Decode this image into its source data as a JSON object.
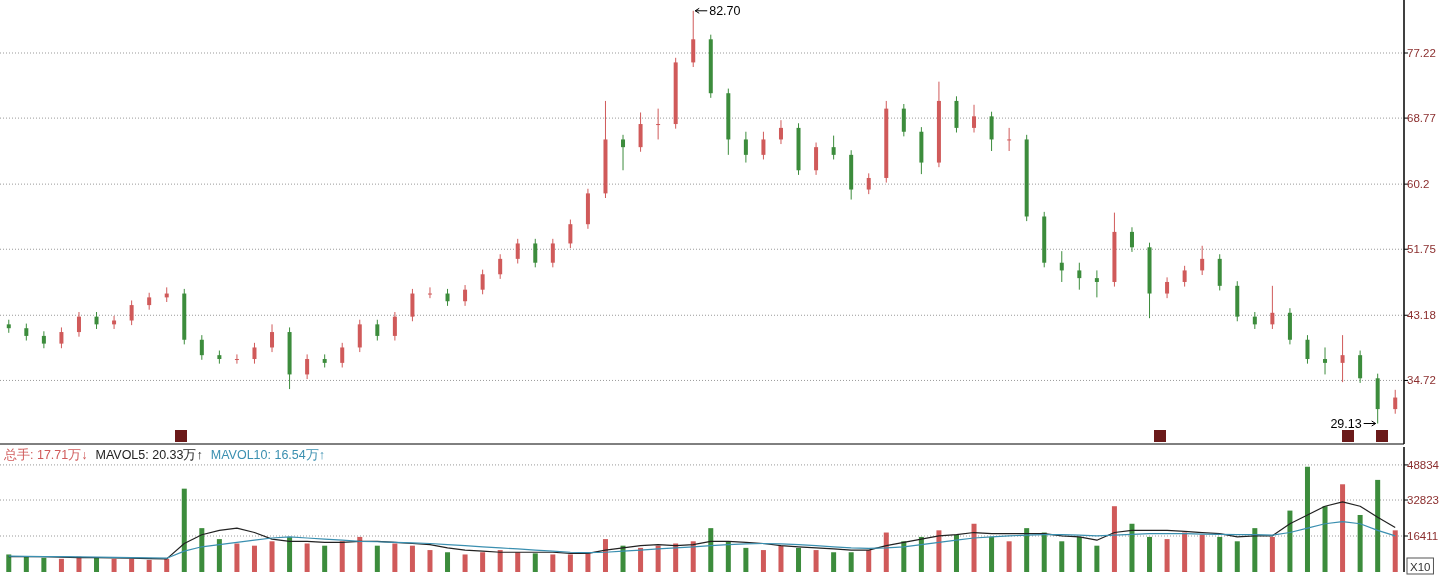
{
  "chart_data": [
    {
      "type": "candlestick",
      "categories": [
        null,
        null,
        null,
        null,
        null,
        null,
        null,
        null,
        null,
        null,
        null,
        null,
        null,
        null,
        null,
        null,
        null,
        null,
        null,
        null,
        null,
        null,
        null,
        null,
        null,
        null,
        null,
        null,
        null,
        null,
        null,
        null,
        null,
        null,
        null,
        null,
        null,
        null,
        null,
        null,
        null,
        null,
        null,
        null,
        null,
        null,
        null,
        null,
        null,
        null,
        null,
        null,
        null,
        null,
        null,
        null,
        null,
        null,
        null,
        null,
        null,
        null,
        null,
        null,
        null,
        null,
        null,
        null,
        null,
        null,
        null,
        null,
        null,
        null,
        null,
        null,
        null,
        null,
        null,
        null
      ],
      "ohlc": [
        [
          42,
          42.6,
          40.9,
          41.5
        ],
        [
          41.5,
          42.1,
          39.9,
          40.5
        ],
        [
          40.5,
          41.1,
          38.9,
          39.5
        ],
        [
          39.5,
          41.6,
          38.9,
          41
        ],
        [
          41,
          43.6,
          40.4,
          43
        ],
        [
          43,
          43.6,
          41.4,
          42
        ],
        [
          42,
          43.1,
          41.4,
          42.5
        ],
        [
          42.5,
          45.1,
          41.9,
          44.5
        ],
        [
          44.5,
          46.1,
          43.9,
          45.5
        ],
        [
          45.5,
          46.8,
          44.9,
          46
        ],
        [
          46,
          46.6,
          39.4,
          40
        ],
        [
          40,
          40.6,
          37.4,
          38
        ],
        [
          38,
          38.6,
          36.9,
          37.5
        ],
        [
          37.5,
          38.1,
          36.9,
          37.5
        ],
        [
          37.5,
          39.6,
          36.9,
          39
        ],
        [
          39,
          42,
          38.4,
          41
        ],
        [
          41,
          41.6,
          33.6,
          35.5
        ],
        [
          35.5,
          38.1,
          34.9,
          37.5
        ],
        [
          37.5,
          38.1,
          36.4,
          37
        ],
        [
          37,
          39.6,
          36.4,
          39
        ],
        [
          39,
          42.6,
          38.4,
          42
        ],
        [
          42,
          42.6,
          39.9,
          40.5
        ],
        [
          40.5,
          43.6,
          39.9,
          43
        ],
        [
          43,
          46.6,
          42.4,
          46
        ],
        [
          46,
          46.8,
          45.4,
          46
        ],
        [
          46,
          46.6,
          44.4,
          45
        ],
        [
          45,
          47.1,
          44.4,
          46.5
        ],
        [
          46.5,
          49.1,
          45.9,
          48.5
        ],
        [
          48.5,
          51.1,
          47.9,
          50.5
        ],
        [
          50.5,
          53.1,
          49.9,
          52.5
        ],
        [
          52.5,
          53.1,
          49.4,
          50
        ],
        [
          50,
          53.1,
          49.4,
          52.5
        ],
        [
          52.5,
          55.6,
          51.9,
          55
        ],
        [
          55,
          59.6,
          54.4,
          59
        ],
        [
          59,
          71,
          58.4,
          66
        ],
        [
          66,
          66.6,
          62,
          65
        ],
        [
          65,
          69.5,
          64.4,
          68
        ],
        [
          68,
          70,
          66,
          68
        ],
        [
          68,
          76.6,
          67.4,
          76
        ],
        [
          76,
          82.7,
          75.4,
          79
        ],
        [
          79,
          79.6,
          71.4,
          72
        ],
        [
          72,
          72.6,
          64,
          66
        ],
        [
          66,
          67,
          63,
          64
        ],
        [
          64,
          67,
          63.4,
          66
        ],
        [
          66,
          68.5,
          65.4,
          67.5
        ],
        [
          67.5,
          68.1,
          61.4,
          62
        ],
        [
          62,
          65.6,
          61.4,
          65
        ],
        [
          65,
          66.5,
          63.4,
          64
        ],
        [
          64,
          64.6,
          58.2,
          59.5
        ],
        [
          59.5,
          61.6,
          58.9,
          61
        ],
        [
          61,
          71,
          60.4,
          70
        ],
        [
          70,
          70.6,
          66.4,
          67
        ],
        [
          67,
          67.6,
          61.5,
          63
        ],
        [
          63,
          73.5,
          62.4,
          71
        ],
        [
          71,
          71.6,
          66.9,
          67.5
        ],
        [
          67.5,
          70.5,
          66.9,
          69
        ],
        [
          69,
          69.6,
          64.5,
          66
        ],
        [
          66,
          67.5,
          64.5,
          66
        ],
        [
          66,
          66.6,
          55.4,
          56
        ],
        [
          56,
          56.6,
          49.4,
          50
        ],
        [
          50,
          51.5,
          47.5,
          49
        ],
        [
          49,
          50,
          46.5,
          48
        ],
        [
          48,
          49,
          45.5,
          47.5
        ],
        [
          47.5,
          56.5,
          46.9,
          54
        ],
        [
          54,
          54.6,
          51.4,
          52
        ],
        [
          52,
          52.6,
          42.8,
          46
        ],
        [
          46,
          48.1,
          45.4,
          47.5
        ],
        [
          47.5,
          49.6,
          46.9,
          49
        ],
        [
          49,
          52.2,
          48.4,
          50.5
        ],
        [
          50.5,
          51.1,
          46.4,
          47
        ],
        [
          47,
          47.6,
          42.4,
          43
        ],
        [
          43,
          43.6,
          41.4,
          42
        ],
        [
          42,
          47,
          41.4,
          43.5
        ],
        [
          43.5,
          44.1,
          39.4,
          40
        ],
        [
          40,
          40.6,
          36.9,
          37.5
        ],
        [
          37.5,
          39,
          35.5,
          37
        ],
        [
          37,
          40.6,
          34.5,
          38
        ],
        [
          38,
          38.6,
          34.4,
          35
        ],
        [
          35,
          35.6,
          29.13,
          31
        ],
        [
          31,
          33.5,
          30.4,
          32.5
        ]
      ],
      "colors": [
        "#3c8c3c",
        "#3c8c3c",
        "#3c8c3c",
        "#d05a5a",
        "#d05a5a",
        "#3c8c3c",
        "#d05a5a",
        "#d05a5a",
        "#d05a5a",
        "#d05a5a",
        "#3c8c3c",
        "#3c8c3c",
        "#3c8c3c",
        "#d05a5a",
        "#d05a5a",
        "#d05a5a",
        "#3c8c3c",
        "#d05a5a",
        "#3c8c3c",
        "#d05a5a",
        "#d05a5a",
        "#3c8c3c",
        "#d05a5a",
        "#d05a5a",
        "#d05a5a",
        "#3c8c3c",
        "#d05a5a",
        "#d05a5a",
        "#d05a5a",
        "#d05a5a",
        "#3c8c3c",
        "#d05a5a",
        "#d05a5a",
        "#d05a5a",
        "#d05a5a",
        "#3c8c3c",
        "#d05a5a",
        "#d05a5a",
        "#d05a5a",
        "#d05a5a",
        "#3c8c3c",
        "#3c8c3c",
        "#3c8c3c",
        "#d05a5a",
        "#d05a5a",
        "#3c8c3c",
        "#d05a5a",
        "#3c8c3c",
        "#3c8c3c",
        "#d05a5a",
        "#d05a5a",
        "#3c8c3c",
        "#3c8c3c",
        "#d05a5a",
        "#3c8c3c",
        "#d05a5a",
        "#3c8c3c",
        "#d05a5a",
        "#3c8c3c",
        "#3c8c3c",
        "#3c8c3c",
        "#3c8c3c",
        "#3c8c3c",
        "#d05a5a",
        "#3c8c3c",
        "#3c8c3c",
        "#d05a5a",
        "#d05a5a",
        "#d05a5a",
        "#3c8c3c",
        "#3c8c3c",
        "#3c8c3c",
        "#d05a5a",
        "#3c8c3c",
        "#3c8c3c",
        "#3c8c3c",
        "#d05a5a",
        "#3c8c3c",
        "#3c8c3c",
        "#d05a5a"
      ],
      "ylim": [
        26.47,
        84.1
      ],
      "yticks": [
        34.72,
        43.18,
        51.75,
        60.2,
        68.77,
        77.22
      ],
      "grid": "y",
      "annotations": [
        "82.70",
        "29.13"
      ]
    },
    {
      "type": "bar",
      "categories": [
        null,
        null,
        null,
        null,
        null,
        null,
        null,
        null,
        null,
        null,
        null,
        null,
        null,
        null,
        null,
        null,
        null,
        null,
        null,
        null,
        null,
        null,
        null,
        null,
        null,
        null,
        null,
        null,
        null,
        null,
        null,
        null,
        null,
        null,
        null,
        null,
        null,
        null,
        null,
        null,
        null,
        null,
        null,
        null,
        null,
        null,
        null,
        null,
        null,
        null,
        null,
        null,
        null,
        null,
        null,
        null,
        null,
        null,
        null,
        null,
        null,
        null,
        null,
        null,
        null,
        null,
        null,
        null,
        null,
        null,
        null,
        null,
        null,
        null,
        null,
        null,
        null,
        null,
        null,
        null
      ],
      "series": [
        {
          "type": "bar",
          "name": "总手: 17.71万↓",
          "color": "#d05a5a",
          "colors": [
            "#3c8c3c",
            "#3c8c3c",
            "#3c8c3c",
            "#d05a5a",
            "#d05a5a",
            "#3c8c3c",
            "#d05a5a",
            "#d05a5a",
            "#d05a5a",
            "#d05a5a",
            "#3c8c3c",
            "#3c8c3c",
            "#3c8c3c",
            "#d05a5a",
            "#d05a5a",
            "#d05a5a",
            "#3c8c3c",
            "#d05a5a",
            "#3c8c3c",
            "#d05a5a",
            "#d05a5a",
            "#3c8c3c",
            "#d05a5a",
            "#d05a5a",
            "#d05a5a",
            "#3c8c3c",
            "#d05a5a",
            "#d05a5a",
            "#d05a5a",
            "#d05a5a",
            "#3c8c3c",
            "#d05a5a",
            "#d05a5a",
            "#d05a5a",
            "#d05a5a",
            "#3c8c3c",
            "#d05a5a",
            "#d05a5a",
            "#d05a5a",
            "#d05a5a",
            "#3c8c3c",
            "#3c8c3c",
            "#3c8c3c",
            "#d05a5a",
            "#d05a5a",
            "#3c8c3c",
            "#d05a5a",
            "#3c8c3c",
            "#3c8c3c",
            "#d05a5a",
            "#d05a5a",
            "#3c8c3c",
            "#3c8c3c",
            "#d05a5a",
            "#3c8c3c",
            "#d05a5a",
            "#3c8c3c",
            "#d05a5a",
            "#3c8c3c",
            "#3c8c3c",
            "#3c8c3c",
            "#3c8c3c",
            "#3c8c3c",
            "#d05a5a",
            "#3c8c3c",
            "#3c8c3c",
            "#d05a5a",
            "#d05a5a",
            "#d05a5a",
            "#3c8c3c",
            "#3c8c3c",
            "#3c8c3c",
            "#d05a5a",
            "#3c8c3c",
            "#3c8c3c",
            "#3c8c3c",
            "#d05a5a",
            "#3c8c3c",
            "#3c8c3c",
            "#d05a5a"
          ],
          "values": [
            8000,
            7000,
            6500,
            6000,
            7000,
            6500,
            6000,
            6000,
            5500,
            6000,
            38000,
            20000,
            15000,
            13000,
            12000,
            14000,
            16000,
            13000,
            12000,
            14000,
            16000,
            12000,
            13000,
            12000,
            10000,
            9000,
            8000,
            9000,
            10000,
            9000,
            8500,
            8000,
            8000,
            9000,
            15000,
            12000,
            11000,
            12000,
            13000,
            14000,
            20000,
            14000,
            11000,
            10000,
            12000,
            11000,
            10000,
            9000,
            9000,
            10000,
            18000,
            14000,
            16000,
            19000,
            17000,
            22000,
            16000,
            14000,
            20000,
            18000,
            14000,
            16000,
            12000,
            30000,
            22000,
            16000,
            15000,
            18000,
            17000,
            16000,
            14000,
            20000,
            16000,
            28000,
            48000,
            30000,
            40000,
            26000,
            42000,
            19000
          ]
        },
        {
          "type": "line",
          "name": "MAVOL5: 20.33万↑",
          "color": "#222222",
          "values": [
            7000,
            7000,
            7000,
            6800,
            6600,
            6600,
            6400,
            6300,
            6100,
            6000,
            13000,
            17000,
            19000,
            20000,
            18000,
            15000,
            14000,
            14000,
            13500,
            13500,
            14000,
            14000,
            13500,
            13000,
            12500,
            11000,
            10000,
            9500,
            9000,
            9000,
            9000,
            9000,
            8500,
            8500,
            10000,
            11000,
            12000,
            12500,
            12000,
            12500,
            14000,
            14000,
            13500,
            13000,
            12000,
            11500,
            11000,
            10500,
            10000,
            10000,
            12000,
            13500,
            15000,
            16500,
            17000,
            18000,
            17500,
            17500,
            17500,
            17500,
            16500,
            16000,
            14500,
            18000,
            19000,
            19000,
            19000,
            18500,
            18000,
            17500,
            16000,
            16500,
            16500,
            22000,
            26000,
            30000,
            32000,
            30000,
            25000,
            20300
          ]
        },
        {
          "type": "line",
          "name": "MAVOL10: 16.54万↑",
          "color": "#3a8fb0",
          "values": [
            7200,
            7100,
            7000,
            7000,
            6900,
            6800,
            6700,
            6600,
            6400,
            6300,
            9500,
            11500,
            12500,
            13500,
            14500,
            15500,
            16000,
            15500,
            15000,
            14500,
            14000,
            13800,
            13500,
            13300,
            13000,
            12500,
            12000,
            11500,
            11000,
            10500,
            10000,
            9500,
            9000,
            8800,
            9000,
            9500,
            10000,
            10500,
            11000,
            11500,
            12000,
            12500,
            12800,
            13000,
            12800,
            12500,
            12000,
            11500,
            11000,
            10800,
            11000,
            11500,
            12500,
            13500,
            14500,
            15500,
            16000,
            16500,
            16800,
            17000,
            17000,
            16800,
            16500,
            16800,
            17200,
            17500,
            17500,
            17500,
            17300,
            17200,
            17000,
            17000,
            16800,
            18000,
            20000,
            22000,
            23000,
            22000,
            19000,
            16500
          ]
        }
      ],
      "ylim": [
        0,
        57000
      ],
      "yticks": [
        16411,
        32823,
        48834
      ],
      "grid": "y",
      "annotations": [
        "X10"
      ]
    }
  ]
}
